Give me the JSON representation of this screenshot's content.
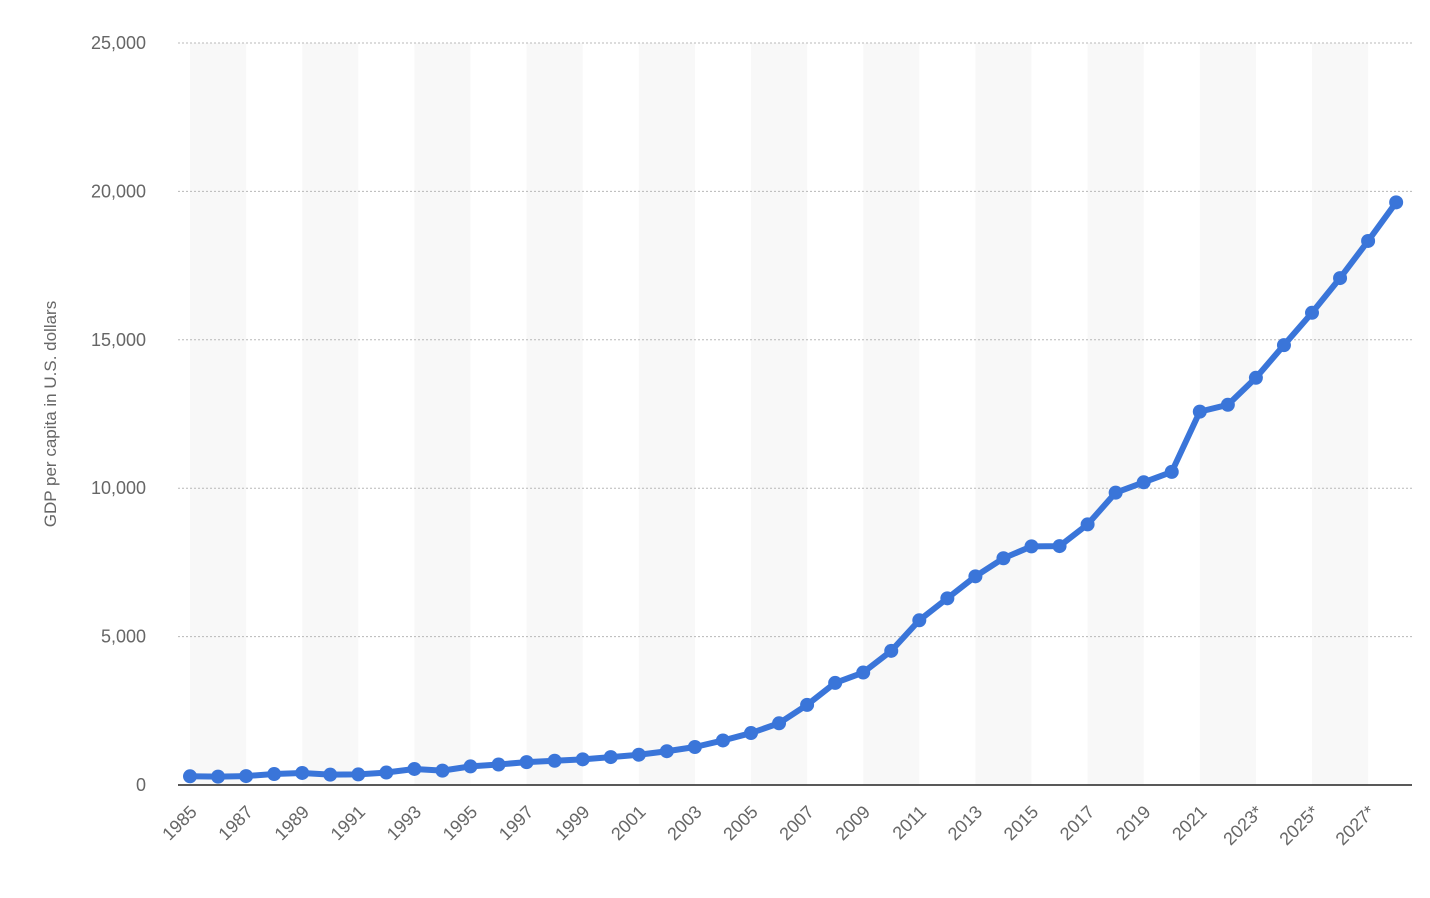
{
  "chart_data": {
    "type": "line",
    "title": "",
    "xlabel": "",
    "ylabel": "GDP per capita in U.S. dollars",
    "ylim": [
      0,
      25000
    ],
    "yticks": [
      0,
      5000,
      10000,
      15000,
      20000,
      25000
    ],
    "ytick_labels": [
      "0",
      "5,000",
      "10,000",
      "15,000",
      "20,000",
      "25,000"
    ],
    "categories": [
      "1985",
      "1986",
      "1987",
      "1988",
      "1989",
      "1990",
      "1991",
      "1992",
      "1993",
      "1994",
      "1995",
      "1996",
      "1997",
      "1998",
      "1999",
      "2000",
      "2001",
      "2002",
      "2003",
      "2004",
      "2005",
      "2006",
      "2007",
      "2008",
      "2009",
      "2010",
      "2011",
      "2012",
      "2013",
      "2014",
      "2015",
      "2016",
      "2017",
      "2018",
      "2019",
      "2020",
      "2021",
      "2022",
      "2023*",
      "2024*",
      "2025*",
      "2026*",
      "2027*",
      "2028*"
    ],
    "xtick_labels": [
      "1985",
      "1987",
      "1989",
      "1991",
      "1993",
      "1995",
      "1997",
      "1999",
      "2001",
      "2003",
      "2005",
      "2007",
      "2009",
      "2011",
      "2013",
      "2015",
      "2017",
      "2019",
      "2021",
      "2023*",
      "2025*",
      "2027*"
    ],
    "grid": true,
    "legend": "none",
    "series": [
      {
        "name": "GDP per capita",
        "color": "#3a75d9",
        "values": [
          294,
          282,
          301,
          370,
          405,
          349,
          357,
          420,
          540,
          484,
          627,
          691,
          771,
          817,
          864,
          940,
          1020,
          1138,
          1280,
          1500,
          1750,
          2080,
          2700,
          3440,
          3790,
          4520,
          5550,
          6290,
          7030,
          7640,
          8040,
          8050,
          8780,
          9850,
          10200,
          10550,
          12580,
          12810,
          13720,
          14820,
          15910,
          17080,
          18330,
          19630
        ]
      }
    ]
  }
}
